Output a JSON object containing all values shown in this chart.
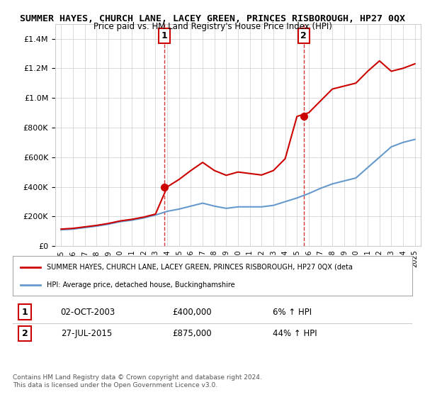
{
  "title": "SUMMER HAYES, CHURCH LANE, LACEY GREEN, PRINCES RISBOROUGH, HP27 0QX",
  "subtitle": "Price paid vs. HM Land Registry's House Price Index (HPI)",
  "red_label": "SUMMER HAYES, CHURCH LANE, LACEY GREEN, PRINCES RISBOROUGH, HP27 0QX (deta",
  "blue_label": "HPI: Average price, detached house, Buckinghamshire",
  "sale1_date": "02-OCT-2003",
  "sale1_price": 400000,
  "sale1_pct": "6% ↑ HPI",
  "sale2_date": "27-JUL-2015",
  "sale2_price": 875000,
  "sale2_pct": "44% ↑ HPI",
  "footer1": "Contains HM Land Registry data © Crown copyright and database right 2024.",
  "footer2": "This data is licensed under the Open Government Licence v3.0.",
  "ylim_max": 1500000,
  "background_color": "#ffffff",
  "grid_color": "#cccccc",
  "red_color": "#cc0000",
  "blue_color": "#6699cc",
  "vline_color": "#cc0000",
  "years": [
    1995,
    1996,
    1997,
    1998,
    1999,
    2000,
    2001,
    2002,
    2003,
    2004,
    2005,
    2006,
    2007,
    2008,
    2009,
    2010,
    2011,
    2012,
    2013,
    2014,
    2015,
    2016,
    2017,
    2018,
    2019,
    2020,
    2021,
    2022,
    2023,
    2024,
    2025
  ],
  "hpi_values": [
    110000,
    115000,
    125000,
    135000,
    148000,
    165000,
    175000,
    190000,
    210000,
    235000,
    250000,
    270000,
    290000,
    270000,
    255000,
    265000,
    265000,
    265000,
    275000,
    300000,
    325000,
    355000,
    390000,
    420000,
    440000,
    460000,
    530000,
    600000,
    670000,
    700000,
    720000
  ],
  "red_values": [
    115000,
    120000,
    130000,
    140000,
    153000,
    170000,
    181000,
    196000,
    216000,
    400000,
    450000,
    510000,
    565000,
    510000,
    478000,
    500000,
    490000,
    480000,
    510000,
    590000,
    875000,
    900000,
    980000,
    1060000,
    1080000,
    1100000,
    1180000,
    1250000,
    1180000,
    1200000,
    1230000
  ],
  "sale1_x": 2003.75,
  "sale2_x": 2015.57
}
